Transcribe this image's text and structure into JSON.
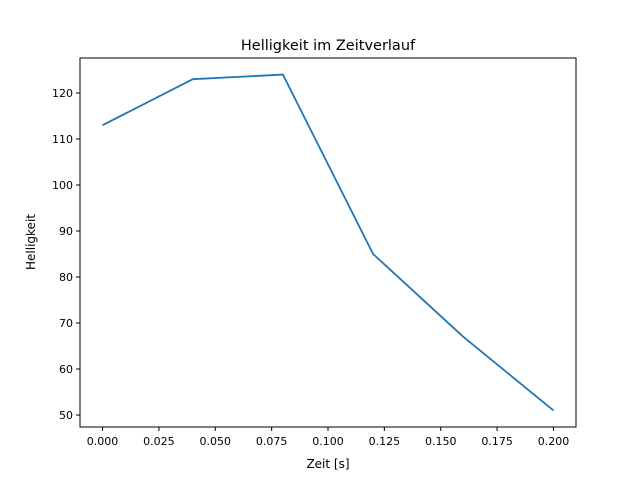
{
  "chart_data": {
    "type": "line",
    "title": "Helligkeit im Zeitverlauf",
    "xlabel": "Zeit [s]",
    "ylabel": "Helligkeit",
    "xlim": [
      -0.01,
      0.21
    ],
    "ylim": [
      47.4,
      127.6
    ],
    "xticks": [
      0.0,
      0.025,
      0.05,
      0.075,
      0.1,
      0.125,
      0.15,
      0.175,
      0.2
    ],
    "xtick_labels": [
      "0.000",
      "0.025",
      "0.050",
      "0.075",
      "0.100",
      "0.125",
      "0.150",
      "0.175",
      "0.200"
    ],
    "yticks": [
      50,
      60,
      70,
      80,
      90,
      100,
      110,
      120
    ],
    "ytick_labels": [
      "50",
      "60",
      "70",
      "80",
      "90",
      "100",
      "110",
      "120"
    ],
    "grid": false,
    "series": [
      {
        "name": "Helligkeit",
        "color": "#1f77b4",
        "x": [
          0.0,
          0.04,
          0.08,
          0.12,
          0.16,
          0.2
        ],
        "y": [
          113,
          123,
          124,
          85,
          67,
          51
        ]
      }
    ]
  }
}
